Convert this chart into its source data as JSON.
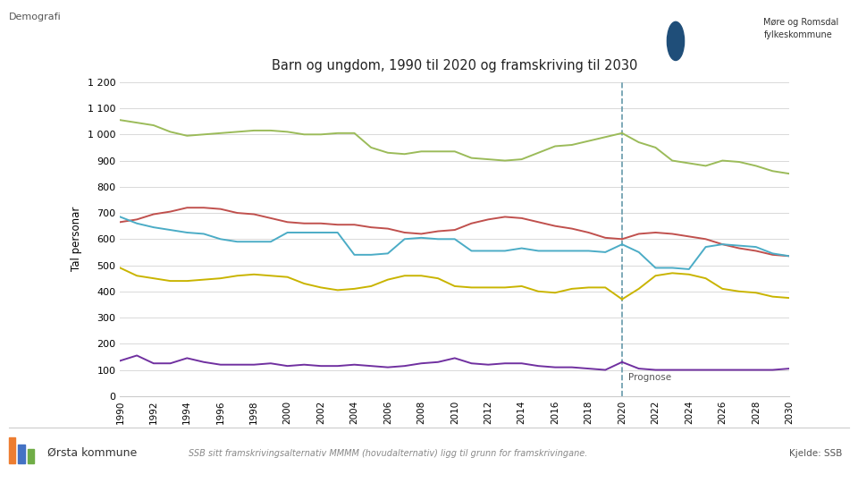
{
  "title": "Barn og ungdom, 1990 til 2020 og framskriving til 2030",
  "ylabel": "Tal personar",
  "top_label": "Demografi",
  "bottom_text": "SSB sitt framskrivingsalternativ MMMM (hovudalternativ) ligg til grunn for framskrivingane.",
  "source_text": "Kjelde: SSB",
  "footer_label": "Ørsta kommune",
  "prognose_label": "Prognose",
  "prognose_year": 2020,
  "ylim": [
    0,
    1200
  ],
  "ytick_vals": [
    0,
    100,
    200,
    300,
    400,
    500,
    600,
    700,
    800,
    900,
    1000,
    1100,
    1200
  ],
  "ytick_labels": [
    "0",
    "100",
    "200",
    "300",
    "400",
    "500",
    "600",
    "700",
    "800",
    "900",
    "1 000",
    "1 100",
    "1 200"
  ],
  "years_hist": [
    1990,
    1991,
    1992,
    1993,
    1994,
    1995,
    1996,
    1997,
    1998,
    1999,
    2000,
    2001,
    2002,
    2003,
    2004,
    2005,
    2006,
    2007,
    2008,
    2009,
    2010,
    2011,
    2012,
    2013,
    2014,
    2015,
    2016,
    2017,
    2018,
    2019,
    2020
  ],
  "years_proj": [
    2020,
    2021,
    2022,
    2023,
    2024,
    2025,
    2026,
    2027,
    2028,
    2029,
    2030
  ],
  "series": {
    "0 år": {
      "color": "#7030A0",
      "hist": [
        135,
        155,
        125,
        125,
        145,
        130,
        120,
        120,
        120,
        125,
        115,
        120,
        115,
        115,
        120,
        115,
        110,
        115,
        125,
        130,
        145,
        125,
        120,
        125,
        125,
        115,
        110,
        110,
        105,
        100,
        130
      ],
      "proj": [
        130,
        105,
        100,
        100,
        100,
        100,
        100,
        100,
        100,
        100,
        105
      ]
    },
    "1-5 år": {
      "color": "#C0504D",
      "hist": [
        665,
        675,
        695,
        705,
        720,
        720,
        715,
        700,
        695,
        680,
        665,
        660,
        660,
        655,
        655,
        645,
        640,
        625,
        620,
        630,
        635,
        660,
        675,
        685,
        680,
        665,
        650,
        640,
        625,
        605,
        600
      ],
      "proj": [
        600,
        620,
        625,
        620,
        610,
        600,
        580,
        565,
        555,
        540,
        535
      ]
    },
    "6-12 år": {
      "color": "#9BBB59",
      "hist": [
        1055,
        1045,
        1035,
        1010,
        995,
        1000,
        1005,
        1010,
        1015,
        1015,
        1010,
        1000,
        1000,
        1005,
        1005,
        950,
        930,
        925,
        935,
        935,
        935,
        910,
        905,
        900,
        905,
        930,
        955,
        960,
        975,
        990,
        1005
      ],
      "proj": [
        1005,
        970,
        950,
        900,
        890,
        880,
        900,
        895,
        880,
        860,
        850
      ]
    },
    "13-15 år": {
      "color": "#C9B400",
      "hist": [
        490,
        460,
        450,
        440,
        440,
        445,
        450,
        460,
        465,
        460,
        455,
        430,
        415,
        405,
        410,
        420,
        445,
        460,
        460,
        450,
        420,
        415,
        415,
        415,
        420,
        400,
        395,
        410,
        415,
        415,
        370
      ],
      "proj": [
        370,
        410,
        460,
        470,
        465,
        450,
        410,
        400,
        395,
        380,
        375
      ]
    },
    "16-19 år": {
      "color": "#4BACC6",
      "hist": [
        685,
        660,
        645,
        635,
        625,
        620,
        600,
        590,
        590,
        590,
        625,
        625,
        625,
        625,
        540,
        540,
        545,
        600,
        605,
        600,
        600,
        555,
        555,
        555,
        565,
        555,
        555,
        555,
        555,
        550,
        580
      ],
      "proj": [
        580,
        550,
        490,
        490,
        485,
        570,
        580,
        575,
        570,
        545,
        535
      ]
    }
  },
  "dashed_color": "#6699AA",
  "grid_color": "#D9D9D9",
  "spine_color": "#CCCCCC"
}
